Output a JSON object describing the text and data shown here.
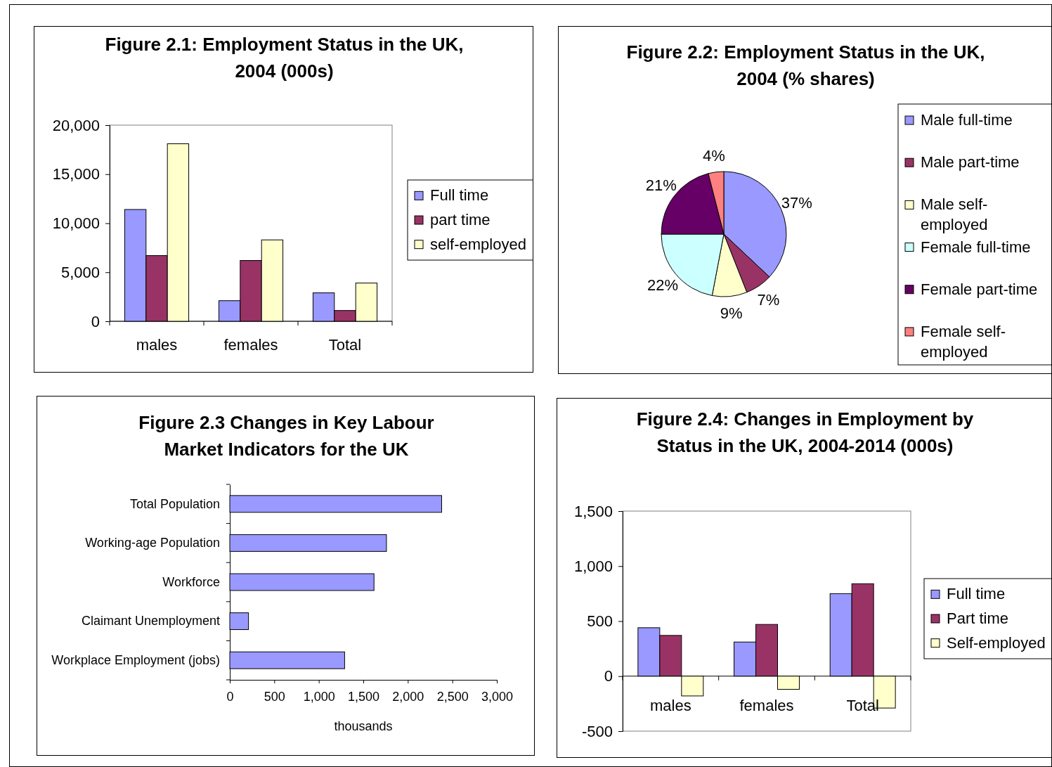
{
  "chart_data": [
    {
      "type": "bar",
      "title": "Figure 2.1:  Employment Status in the UK, 2004 (000s)",
      "categories": [
        "males",
        "females",
        "Total"
      ],
      "series": [
        {
          "name": "Full time",
          "color": "#9999ff",
          "values": [
            11400,
            2100,
            2900
          ]
        },
        {
          "name": "part time",
          "color": "#993366",
          "values": [
            6700,
            6200,
            1100
          ]
        },
        {
          "name": "self-employed",
          "color": "#ffffcc",
          "values": [
            18100,
            8300,
            3900
          ]
        }
      ],
      "ylim": [
        0,
        20000
      ],
      "yticks": [
        0,
        {
          "value": 5000,
          "label": "5,000"
        },
        {
          "value": 10000,
          "label": "10,000"
        },
        {
          "value": 15000,
          "label": "15,000"
        },
        {
          "value": 20000,
          "label": "20,000"
        }
      ],
      "legend": "right"
    },
    {
      "type": "pie",
      "title": "Figure 2.2: Employment Status in the UK, 2004 (% shares)",
      "categories": [
        "Male full-time",
        "Male part-time",
        "Male self-employed",
        "Female full-time",
        "Female part-time",
        "Female self-employed"
      ],
      "values": [
        37,
        7,
        9,
        22,
        21,
        4
      ],
      "colors": [
        "#9999ff",
        "#993366",
        "#ffffcc",
        "#ccffff",
        "#660066",
        "#ff8080"
      ],
      "value_labels": [
        "37%",
        "7%",
        "9%",
        "22%",
        "21%",
        "4%"
      ],
      "legend": "right"
    },
    {
      "type": "bar",
      "orientation": "horizontal",
      "title": "Figure 2.3 Changes in Key Labour Market Indicators for the UK",
      "xlabel": "thousands",
      "categories": [
        "Total Population",
        "Working-age Population",
        "Workforce",
        "Claimant Unemployment",
        "Workplace Employment (jobs)"
      ],
      "series": [
        {
          "color": "#9999ff",
          "values": [
            2380,
            1760,
            1620,
            210,
            1290
          ]
        }
      ],
      "xlim": [
        0,
        3000
      ],
      "xticks": [
        0,
        500,
        {
          "value": 1000,
          "label": "1,000"
        },
        {
          "value": 1500,
          "label": "1,500"
        },
        {
          "value": 2000,
          "label": "2,000"
        },
        {
          "value": 2500,
          "label": "2,500"
        },
        {
          "value": 3000,
          "label": "3,000"
        }
      ]
    },
    {
      "type": "bar",
      "title": "Figure 2.4: Changes in Employment by Status in the UK, 2004-2014 (000s)",
      "categories": [
        "males",
        "females",
        "Total"
      ],
      "series": [
        {
          "name": "Full time",
          "color": "#9999ff",
          "values": [
            440,
            310,
            750
          ]
        },
        {
          "name": "Part time",
          "color": "#993366",
          "values": [
            370,
            470,
            840
          ]
        },
        {
          "name": "Self-employed",
          "color": "#ffffcc",
          "values": [
            -180,
            -120,
            -290
          ]
        }
      ],
      "ylim": [
        -500,
        1500
      ],
      "yticks": [
        -500,
        0,
        500,
        {
          "value": 1000,
          "label": "1,000"
        },
        {
          "value": 1500,
          "label": "1,500"
        }
      ],
      "legend": "right"
    }
  ]
}
